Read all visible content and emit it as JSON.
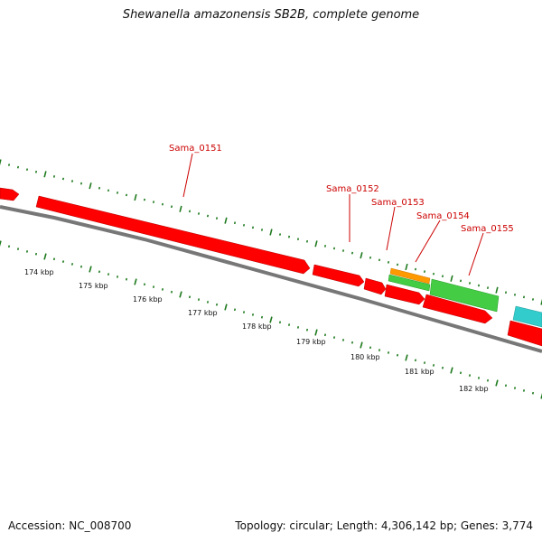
{
  "title": "Shewanella amazonensis SB2B, complete genome",
  "footer": {
    "accession": "Accession: NC_008700",
    "info": "Topology: circular; Length: 4,306,142 bp; Genes: 3,774"
  },
  "colors": {
    "gene_forward": "#ff0000",
    "gene_forward_dark": "#c80000",
    "backbone": "#888888",
    "backbone_dark": "#555555",
    "tick": "#1e7a1e",
    "label": "#cc0000",
    "green_feature": "#44cc44",
    "orange_feature": "#ff9900",
    "cyan_feature": "#33cccc"
  },
  "kbp_labels": [
    "174 kbp",
    "175 kbp",
    "176 kbp",
    "177 kbp",
    "178 kbp",
    "179 kbp",
    "180 kbp",
    "181 kbp",
    "182 kbp"
  ],
  "gene_labels": [
    "Sama_0151",
    "Sama_0152",
    "Sama_0153",
    "Sama_0154",
    "Sama_0155"
  ]
}
